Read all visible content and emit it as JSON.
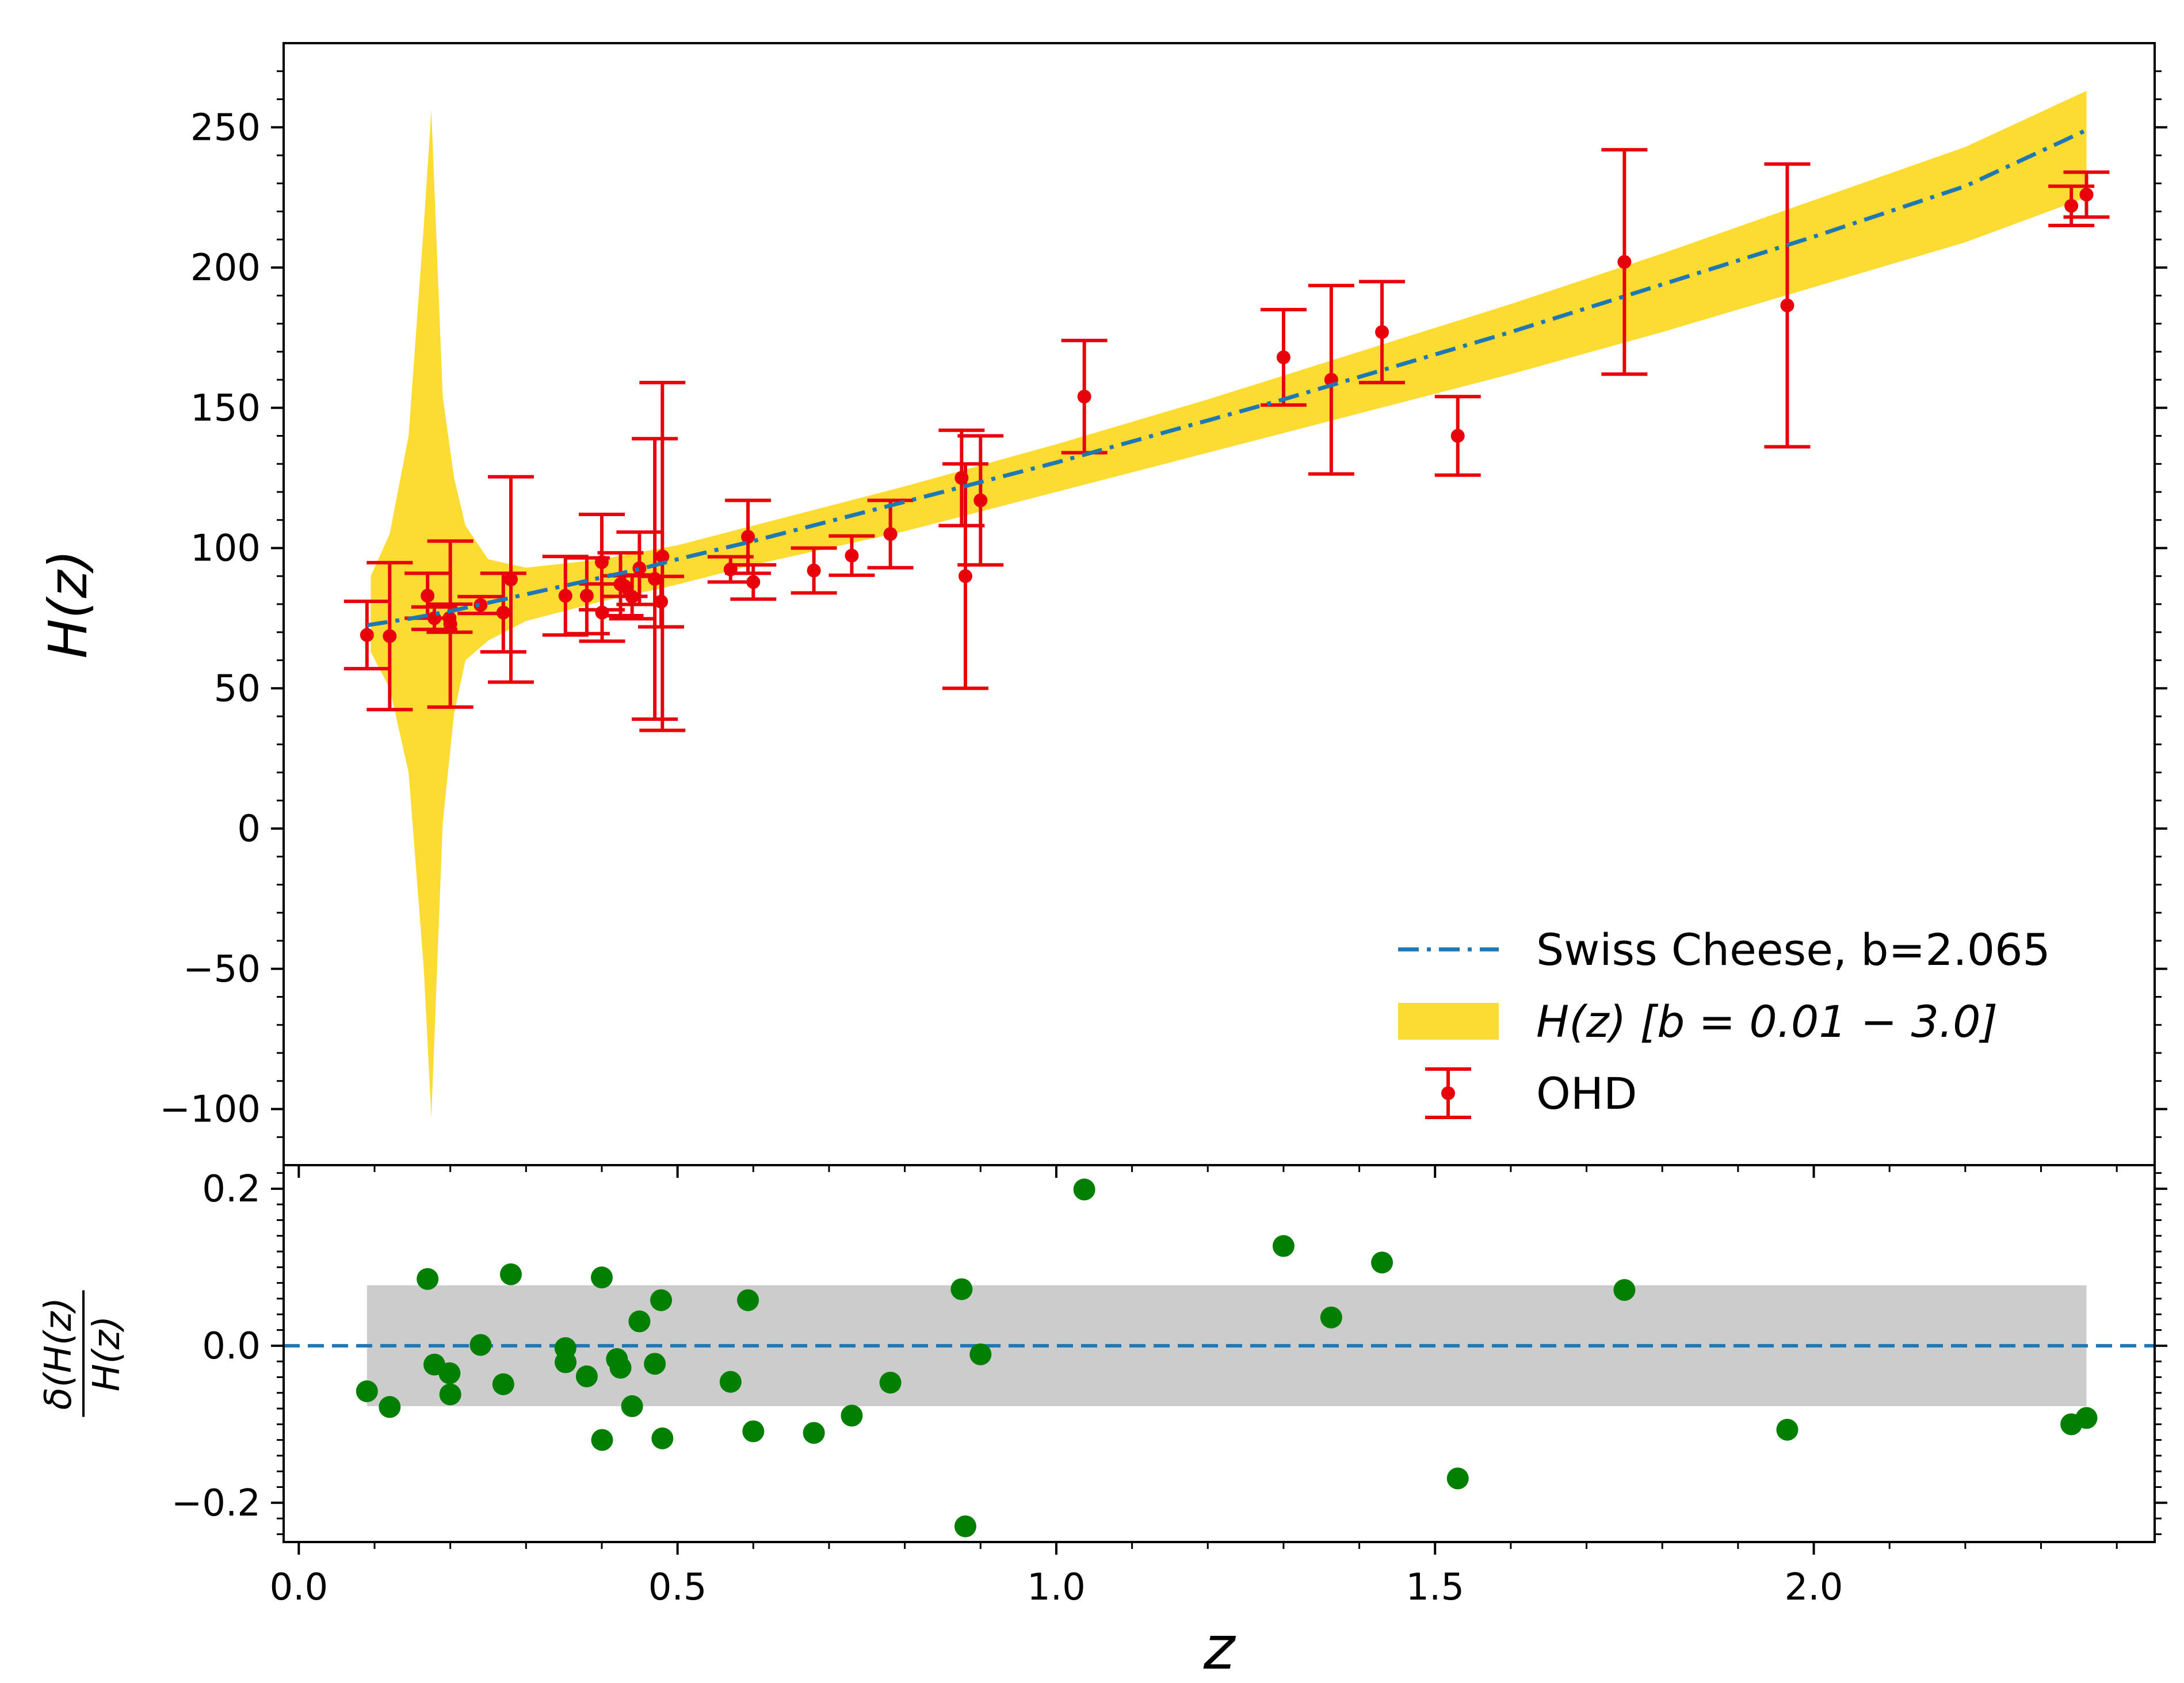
{
  "chart_data": [
    {
      "type": "line",
      "panel": "top",
      "ylabel": "H(z)",
      "xlabel": "",
      "xlim": [
        -0.02,
        2.45
      ],
      "ylim": [
        -120,
        280
      ],
      "y_ticks": [
        250,
        200,
        150,
        100,
        50,
        0,
        -50,
        -100
      ],
      "y_tick_labels": [
        "250",
        "200",
        "150",
        "100",
        "50",
        "0",
        "−50",
        "−100"
      ],
      "series": [
        {
          "name": "Swiss Cheese, b=2.065",
          "style": "dash-dot",
          "color": "#1f77b4",
          "x": [
            0.09,
            0.15,
            0.2,
            0.25,
            0.3,
            0.35,
            0.4,
            0.45,
            0.5,
            0.6,
            0.7,
            0.8,
            0.9,
            1.0,
            1.1,
            1.2,
            1.3,
            1.4,
            1.5,
            1.6,
            1.7,
            1.8,
            1.9,
            2.0,
            2.1,
            2.2,
            2.36
          ],
          "y": [
            72.5,
            75,
            77.5,
            80.5,
            83.5,
            86.5,
            89.5,
            92.5,
            96,
            102.5,
            109.5,
            116.5,
            123.5,
            130.5,
            138,
            145.5,
            153,
            161,
            169,
            177,
            185.5,
            194,
            202.5,
            211,
            220,
            229,
            249
          ]
        },
        {
          "name": "H(z) [b = 0.01 − 3.0]",
          "type": "band",
          "color": "#fcdc32",
          "x": [
            0.095,
            0.12,
            0.145,
            0.165,
            0.175,
            0.19,
            0.205,
            0.22,
            0.25,
            0.3,
            0.4,
            0.5,
            0.6,
            0.7,
            0.8,
            1.0,
            1.2,
            1.4,
            1.6,
            1.8,
            2.0,
            2.2,
            2.36
          ],
          "upper": [
            90,
            105,
            140,
            215,
            256,
            154,
            125,
            108,
            96,
            93,
            96,
            101,
            108,
            115,
            122,
            137,
            153,
            170,
            187,
            205,
            224,
            243,
            263
          ],
          "lower": [
            63,
            50,
            20,
            -50,
            -103,
            2,
            41,
            60,
            67,
            74,
            81,
            87,
            94,
            100,
            106,
            120,
            134,
            148,
            162,
            177,
            193,
            209,
            225
          ]
        },
        {
          "name": "OHD",
          "type": "errorbar",
          "color": "#e8000b",
          "x": [
            0.09,
            0.12,
            0.17,
            0.179,
            0.199,
            0.2,
            0.24,
            0.27,
            0.28,
            0.352,
            0.3802,
            0.4,
            0.4004,
            0.4247,
            0.43,
            0.44,
            0.4497,
            0.47,
            0.4783,
            0.48,
            0.57,
            0.593,
            0.6,
            0.68,
            0.73,
            0.781,
            0.875,
            0.88,
            0.9,
            1.037,
            1.3,
            1.363,
            1.43,
            1.53,
            1.75,
            1.965,
            2.34,
            2.36
          ],
          "y": [
            69,
            68.6,
            83,
            75,
            75,
            72.9,
            79.69,
            77,
            88.8,
            83,
            83,
            95,
            77,
            87.1,
            86.45,
            82.6,
            92.8,
            89,
            80.9,
            97,
            92.4,
            104,
            87.9,
            92,
            97.3,
            105,
            125,
            90,
            117,
            154,
            168,
            160,
            177,
            140,
            202,
            186.5,
            222,
            226
          ],
          "err": [
            12,
            26.2,
            8,
            4,
            5,
            29.6,
            2.99,
            14,
            36.6,
            14,
            13.5,
            17,
            10.2,
            11.2,
            3.68,
            7.8,
            12.9,
            50,
            9,
            62,
            4.5,
            13,
            6.1,
            8,
            7,
            12,
            17,
            40,
            23,
            20,
            17,
            33.6,
            18,
            14,
            40,
            50.4,
            7,
            8
          ]
        }
      ],
      "legend": {
        "position": "bottom-right",
        "entries": [
          "Swiss Cheese, b=2.065",
          "H(z) [b = 0.01 − 3.0]",
          "OHD"
        ]
      }
    },
    {
      "type": "scatter",
      "panel": "bottom",
      "ylabel": "δ(H(z)) / H(z)",
      "ylabel_numerator": "δ(H(z)",
      "ylabel_denominator": "H(z)",
      "xlabel": "z",
      "xlim": [
        -0.02,
        2.45
      ],
      "ylim": [
        -0.25,
        0.23
      ],
      "x_ticks": [
        0.0,
        0.5,
        1.0,
        1.5,
        2.0
      ],
      "x_tick_labels": [
        "0.0",
        "0.5",
        "1.0",
        "1.5",
        "2.0"
      ],
      "y_ticks": [
        0.2,
        0.0,
        -0.2
      ],
      "y_tick_labels": [
        "0.2",
        "0.0",
        "−0.2"
      ],
      "reference_line": 0.0,
      "reference_color": "#1f77b4",
      "shaded_band": {
        "x": [
          0.09,
          2.36
        ],
        "y": [
          -0.077,
          0.077
        ],
        "color": "#cccccc"
      },
      "points": {
        "color": "#007f00",
        "x": [
          0.09,
          0.12,
          0.17,
          0.179,
          0.199,
          0.2,
          0.24,
          0.27,
          0.28,
          0.352,
          0.3522,
          0.3802,
          0.4,
          0.4004,
          0.42,
          0.4247,
          0.44,
          0.4497,
          0.47,
          0.4783,
          0.48,
          0.57,
          0.593,
          0.6,
          0.68,
          0.73,
          0.781,
          0.875,
          0.88,
          0.9,
          1.037,
          1.3,
          1.363,
          1.43,
          1.53,
          1.75,
          1.965,
          2.34,
          2.36
        ],
        "y": [
          -0.058,
          -0.078,
          0.085,
          -0.024,
          -0.035,
          -0.062,
          0.001,
          -0.049,
          0.091,
          -0.003,
          -0.021,
          -0.039,
          0.087,
          -0.12,
          -0.017,
          -0.028,
          -0.077,
          0.031,
          -0.023,
          0.058,
          -0.118,
          -0.046,
          0.058,
          -0.109,
          -0.111,
          -0.089,
          -0.047,
          0.072,
          -0.23,
          -0.011,
          0.199,
          0.127,
          0.036,
          0.106,
          -0.169,
          0.071,
          -0.107,
          -0.1,
          -0.092
        ]
      }
    }
  ]
}
